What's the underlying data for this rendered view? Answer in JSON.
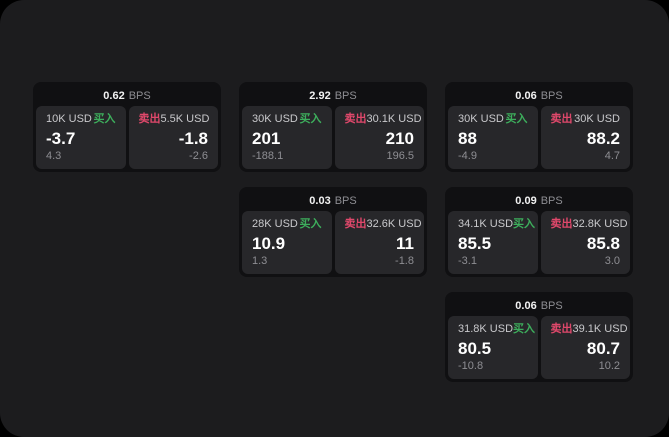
{
  "theme": {
    "background": "#000000",
    "surface": "#1c1c1e",
    "card_bg": "#101012",
    "panel_bg": "#27272a",
    "buy_color": "#3dae5c",
    "sell_color": "#e0486b",
    "text_primary": "#ffffff",
    "text_secondary": "#c9c9cc",
    "text_muted": "#8e8e93"
  },
  "labels": {
    "bps_unit": "BPS",
    "buy": "买入",
    "sell": "卖出"
  },
  "cards": [
    {
      "bps": "0.62",
      "buy": {
        "amount": "10K USD",
        "value": "-3.7",
        "sub": "4.3"
      },
      "sell": {
        "amount": "5.5K USD",
        "value": "-1.8",
        "sub": "-2.6"
      }
    },
    {
      "bps": "2.92",
      "buy": {
        "amount": "30K USD",
        "value": "201",
        "sub": "-188.1"
      },
      "sell": {
        "amount": "30.1K USD",
        "value": "210",
        "sub": "196.5"
      }
    },
    {
      "bps": "0.06",
      "buy": {
        "amount": "30K USD",
        "value": "88",
        "sub": "-4.9"
      },
      "sell": {
        "amount": "30K USD",
        "value": "88.2",
        "sub": "4.7"
      }
    },
    {
      "bps": "0.03",
      "buy": {
        "amount": "28K USD",
        "value": "10.9",
        "sub": "1.3"
      },
      "sell": {
        "amount": "32.6K USD",
        "value": "11",
        "sub": "-1.8"
      }
    },
    {
      "bps": "0.09",
      "buy": {
        "amount": "34.1K USD",
        "value": "85.5",
        "sub": "-3.1"
      },
      "sell": {
        "amount": "32.8K USD",
        "value": "85.8",
        "sub": "3.0"
      }
    },
    {
      "bps": "0.06",
      "buy": {
        "amount": "31.8K USD",
        "value": "80.5",
        "sub": "-10.8"
      },
      "sell": {
        "amount": "39.1K USD",
        "value": "80.7",
        "sub": "10.2"
      }
    }
  ]
}
